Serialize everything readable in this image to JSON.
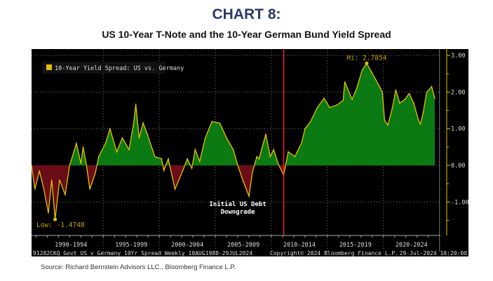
{
  "header": {
    "title": "CHART 8:",
    "subtitle": "US 10-Year T-Note and the 10-Year German Bund Yield Spread"
  },
  "source": "Source: Richard Bernstein Advisors LLC., Bloomberg Finance L.P.",
  "colors": {
    "positive_fill": "#0b7a12",
    "negative_fill": "#6b0d18",
    "line": "#e6c000",
    "event_line": "#ff1a1a",
    "title": "#2b3a67"
  },
  "chart_data": {
    "type": "area",
    "title": "10-Year Yield Spread: US vs. Germany",
    "legend": {
      "label": "10-Year Yield Spread: US vs. Germany",
      "placement": "top-left"
    },
    "ylabel": "",
    "xlabel": "",
    "ylim": [
      -1.9,
      3.15
    ],
    "xlim": [
      1988.6,
      2025.4
    ],
    "y_ticks": [
      "3.00",
      "2.00",
      "1.00",
      "0.00",
      "-1.00"
    ],
    "y_tick_values": [
      3,
      2,
      1,
      0,
      -1
    ],
    "x_bands": [
      "1990-1994",
      "1995-1999",
      "2000-2004",
      "2005-2009",
      "2010-2014",
      "2015-2019",
      "2020-2024"
    ],
    "x_band_starts": [
      1990,
      1995,
      2000,
      2005,
      2010,
      2015,
      2020
    ],
    "annotations": {
      "low": {
        "label": "Low: -1.4748",
        "x": 1990.7,
        "y": -1.4748
      },
      "high": {
        "label": "Hi: 2.7854",
        "x": 2018.5,
        "y": 2.7854
      },
      "event": {
        "line1": "Initial US Debt",
        "line2": "Downgrade",
        "x": 2011.1
      }
    },
    "footer_left": "91282CKQ Govt US v Germany 10Yr Spread  Weekly 10AUG1988-29JUL2024",
    "footer_right_copy": "Copyright© 2024 Bloomberg Finance L.P.",
    "footer_right_date": "29-Jul-2024 10:20:00",
    "x": [
      1988.6,
      1988.9,
      1989.3,
      1989.7,
      1990.1,
      1990.4,
      1990.7,
      1991.1,
      1991.6,
      1992.0,
      1992.6,
      1993.0,
      1993.2,
      1993.5,
      1993.8,
      1994.3,
      1994.6,
      1995.2,
      1995.6,
      1996.2,
      1996.7,
      1997.3,
      1997.7,
      1997.9,
      1998.2,
      1998.55,
      1998.9,
      1999.6,
      2000.2,
      2000.4,
      2000.8,
      2001.4,
      2002.1,
      2002.5,
      2002.9,
      2003.2,
      2003.6,
      2004.1,
      2004.7,
      2005.4,
      2006.0,
      2006.6,
      2007.0,
      2007.5,
      2008.0,
      2008.3,
      2008.7,
      2008.9,
      2009.5,
      2009.9,
      2010.2,
      2010.6,
      2011.1,
      2011.5,
      2012.1,
      2012.7,
      2013.0,
      2013.5,
      2014.1,
      2014.7,
      2015.2,
      2015.8,
      2016.4,
      2016.55,
      2017.2,
      2017.6,
      2018.1,
      2018.5,
      2018.95,
      2019.6,
      2019.9,
      2020.1,
      2020.4,
      2020.8,
      2021.1,
      2021.45,
      2021.9,
      2022.3,
      2022.7,
      2023.1,
      2023.3,
      2023.55,
      2023.85,
      2024.3,
      2024.58
    ],
    "values": [
      0,
      -0.65,
      -0.15,
      -0.65,
      -1.3,
      -0.4,
      -1.4748,
      -0.4,
      -0.8,
      0,
      0.6,
      0.05,
      0.5,
      0,
      -0.65,
      -0.2,
      0.25,
      0.6,
      1.0,
      0.37,
      0.75,
      0.43,
      1.13,
      1.67,
      0.75,
      1.16,
      0.88,
      0.24,
      0.18,
      -0.14,
      0.18,
      -0.65,
      -0.14,
      0.18,
      -0.08,
      0.43,
      0.11,
      0.75,
      1.2,
      1.15,
      0.75,
      0.43,
      0,
      -0.45,
      -0.84,
      -0.2,
      0.24,
      0.18,
      0.85,
      0.24,
      0.43,
      0.05,
      -0.27,
      0.37,
      0.24,
      0.62,
      1.0,
      1.2,
      1.58,
      1.83,
      1.58,
      1.64,
      1.77,
      2.28,
      1.8,
      2.09,
      2.6,
      2.7854,
      2.54,
      2.18,
      2.0,
      1.23,
      1.1,
      1.58,
      2.06,
      1.7,
      1.8,
      1.96,
      1.7,
      1.26,
      1.13,
      1.45,
      1.99,
      2.15,
      1.83
    ]
  }
}
